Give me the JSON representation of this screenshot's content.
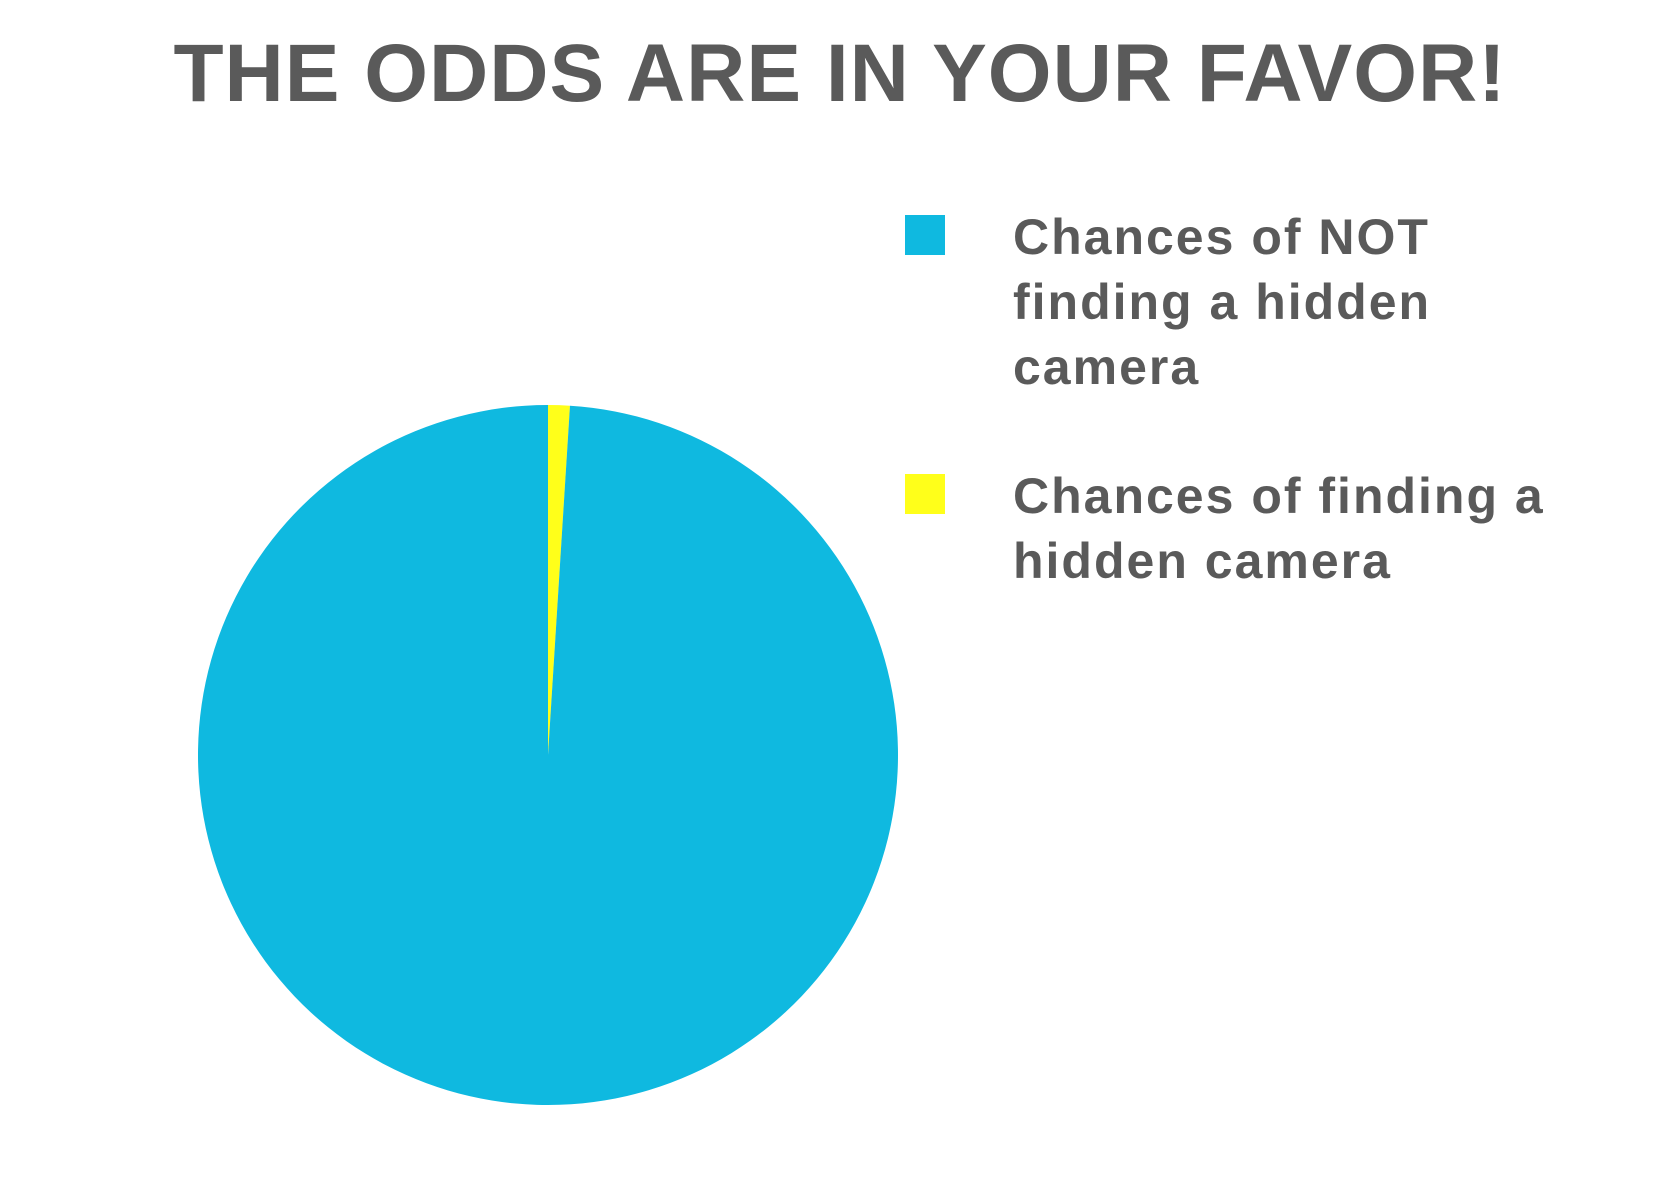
{
  "chart_data": {
    "type": "pie",
    "title": "THE ODDS ARE IN YOUR FAVOR!",
    "start_angle_deg": 0,
    "direction": "clockwise",
    "legend_position": "right",
    "slices": [
      {
        "label": "Chances of finding a hidden camera",
        "value": 1,
        "color": "#ffff1a"
      },
      {
        "label": "Chances of NOT finding a hidden camera",
        "value": 99,
        "color": "#0fb9e0"
      }
    ]
  },
  "legend": [
    {
      "label": "Chances of NOT finding a hidden camera",
      "color": "#0fb9e0"
    },
    {
      "label": "Chances of finding a hidden camera",
      "color": "#ffff1a"
    }
  ]
}
